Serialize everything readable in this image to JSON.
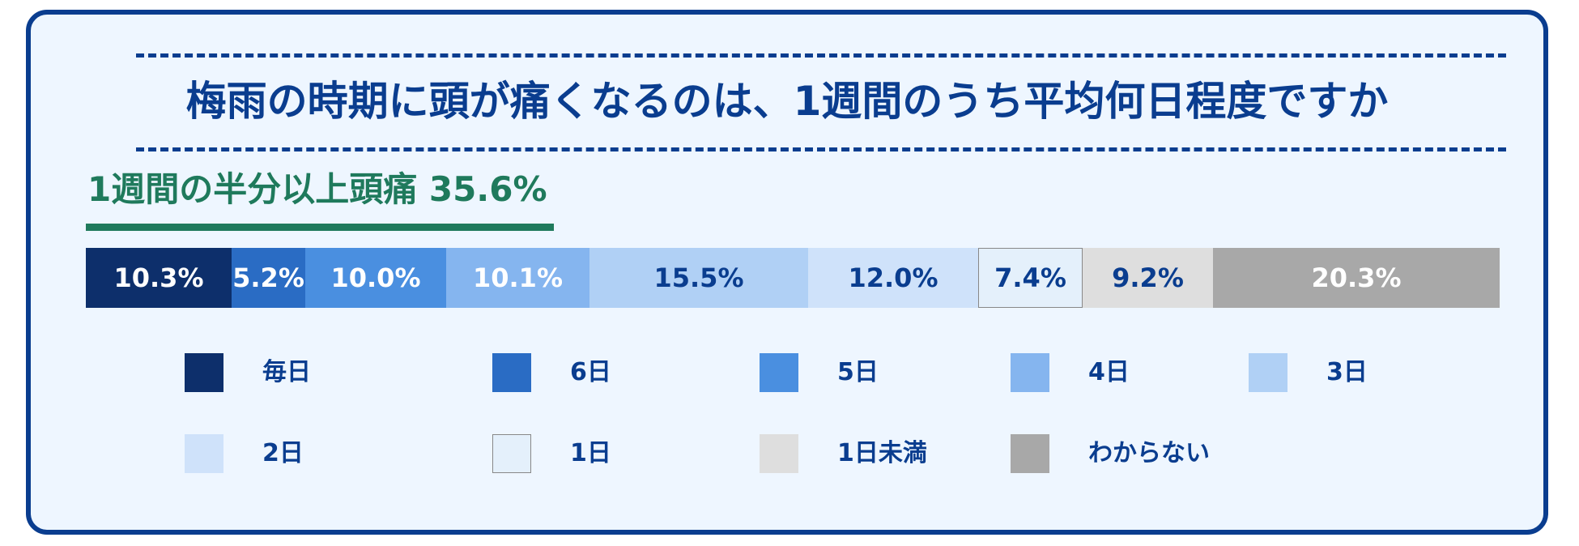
{
  "title": "梅雨の時期に頭が痛くなるのは、1週間のうち平均何日程度ですか",
  "subtitle": "1週間の半分以上頭痛 35.6%",
  "chart_data": {
    "type": "bar",
    "stacked": true,
    "orientation": "horizontal",
    "title": "梅雨の時期に頭が痛くなるのは、1週間のうち平均何日程度ですか",
    "unit": "%",
    "categories": [
      "毎日",
      "6日",
      "5日",
      "4日",
      "3日",
      "2日",
      "1日",
      "1日未満",
      "わからない"
    ],
    "values": [
      10.3,
      5.2,
      10.0,
      10.1,
      15.5,
      12.0,
      7.4,
      9.2,
      20.3
    ],
    "labels": [
      "10.3%",
      "5.2%",
      "10.0%",
      "10.1%",
      "15.5%",
      "12.0%",
      "7.4%",
      "9.2%",
      "20.3%"
    ],
    "colors": [
      "#0d2f6b",
      "#2a6cc4",
      "#4a8fe0",
      "#85b5ef",
      "#b0d0f5",
      "#cfe2fa",
      "#e4f0fb",
      "#dedede",
      "#a8a8a8"
    ],
    "label_colors": [
      "#ffffff",
      "#ffffff",
      "#ffffff",
      "#ffffff",
      "#0a3d8f",
      "#0a3d8f",
      "#0a3d8f",
      "#0a3d8f",
      "#ffffff"
    ],
    "legend": "bottom"
  }
}
